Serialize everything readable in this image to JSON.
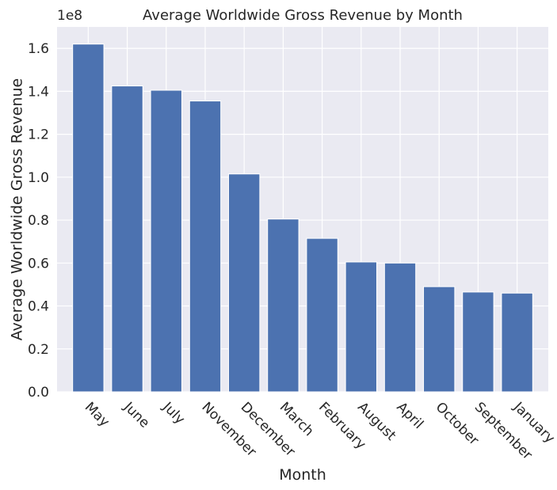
{
  "chart_data": {
    "type": "bar",
    "title": "Average Worldwide Gross Revenue by Month",
    "xlabel": "Month",
    "ylabel": "Average Worldwide Gross Revenue",
    "y_offset_label": "1e8",
    "y_scale_factor": 100000000,
    "ylim": [
      0,
      1.7
    ],
    "yticks": [
      0.0,
      0.2,
      0.4,
      0.6,
      0.8,
      1.0,
      1.2,
      1.4,
      1.6
    ],
    "ytick_labels": [
      "0.0",
      "0.2",
      "0.4",
      "0.6",
      "0.8",
      "1.0",
      "1.2",
      "1.4",
      "1.6"
    ],
    "categories": [
      "May",
      "June",
      "July",
      "November",
      "December",
      "March",
      "February",
      "August",
      "April",
      "October",
      "September",
      "January"
    ],
    "values": [
      162000000,
      142500000,
      140500000,
      135500000,
      101500000,
      80500000,
      71500000,
      60500000,
      60000000,
      49000000,
      46500000,
      46000000
    ],
    "grid": true,
    "bar_color": "#4c72b0",
    "background_color": "#eaeaf2",
    "grid_color": "#ffffff"
  }
}
